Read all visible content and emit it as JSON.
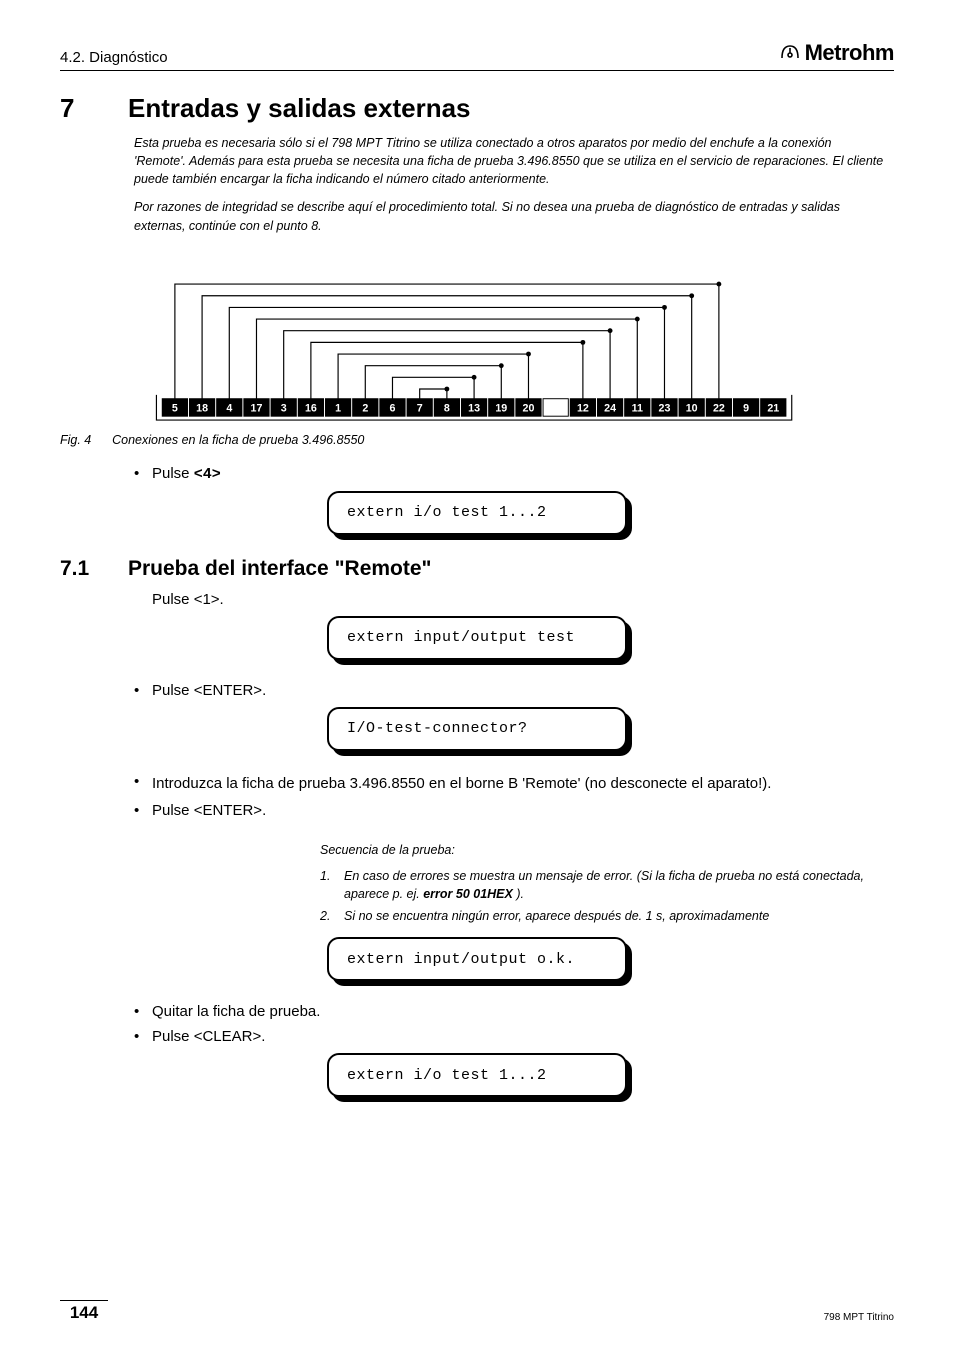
{
  "header": {
    "section_path": "4.2. Diagnóstico",
    "logo_text": "Metrohm"
  },
  "section7": {
    "number": "7",
    "title": "Entradas y salidas externas",
    "intro1": "Esta prueba es necesaria sólo si el 798 MPT Titrino se utiliza conectado a otros aparatos por medio del enchufe a la conexión 'Remote'. Además para esta prueba se necesita una ficha de prueba 3.496.8550 que se utiliza en el servicio de reparaciones. El cliente puede también encargar la ficha indicando el número citado anteriormente.",
    "intro2": "Por razones de integridad se describe aquí el procedimiento total. Si no desea una prueba de diagnóstico de entradas y salidas externas, continúe con el punto 8."
  },
  "diagram": {
    "pin_labels": [
      "5",
      "18",
      "4",
      "17",
      "3",
      "16",
      "1",
      "2",
      "6",
      "7",
      "8",
      "13",
      "19",
      "20",
      "",
      "12",
      "24",
      "11",
      "23",
      "10",
      "22",
      "9",
      "21"
    ],
    "fig_label": "Fig. 4",
    "fig_caption": "Conexiones en la ficha de prueba 3.496.8550"
  },
  "step_pulse4": {
    "prefix": "Pulse ",
    "key": "<4>"
  },
  "lcd1": "extern i/o test  1...2",
  "section71": {
    "number": "7.1",
    "title": "Prueba del interface \"Remote\"",
    "pulse1": "Pulse <1>."
  },
  "lcd2": "extern input/output test",
  "step_enter1": {
    "prefix": "Pulse ",
    "key": "<ENTER>",
    "suffix": "."
  },
  "lcd3": "I/O-test-connector?",
  "step_intro_ficha": "Introduzca la ficha de prueba 3.496.8550 en el borne B 'Remote' (no desconecte el aparato!).",
  "step_enter2": {
    "prefix": "Pulse ",
    "key": "<ENTER>",
    "suffix": "."
  },
  "sequence": {
    "title": "Secuencia de la prueba:",
    "item1_a": "En caso de errores se muestra un mensaje de error. (Si la ficha de prueba no está conectada, aparece p. ej. ",
    "item1_err": "error 50   01HEX",
    "item1_b": " ).",
    "item2": "Si no se encuentra ningún error, aparece después de. 1 s, aproximadamente"
  },
  "lcd4": "extern input/output o.k.",
  "step_quitar": "Quitar la ficha de prueba.",
  "step_clear": {
    "prefix": "Pulse ",
    "key": "<CLEAR>",
    "suffix": "."
  },
  "lcd5": "extern i/o test  1...2",
  "footer": {
    "page": "144",
    "doc": "798 MPT Titrino"
  }
}
